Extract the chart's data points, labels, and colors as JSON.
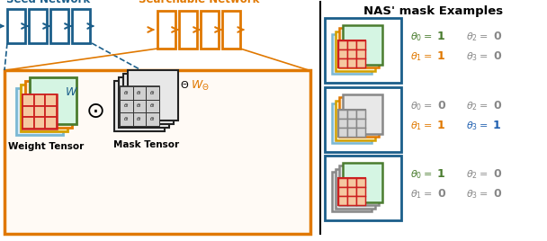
{
  "title": "NAS' mask Examples",
  "seed_network_label": "Seed Network",
  "seed_network_color": "#1B5E8A",
  "searchable_network_label": "Searchable Network",
  "searchable_network_color": "#E07800",
  "weight_tensor_label": "Weight Tensor",
  "mask_tensor_label": "Mask Tensor",
  "bg_color": "#ffffff",
  "orange_color": "#E07800",
  "teal_color": "#1B5E8A",
  "green_color": "#4A7C2F",
  "red_color": "#CC2020",
  "gray_color": "#888888",
  "blue_color": "#2060B0",
  "yellow_color": "#D4A000",
  "light_blue_color": "#7BB8D4",
  "example_rows": [
    {
      "theta_vals": [
        "1",
        "1",
        "0",
        "0"
      ],
      "theta_colors": [
        "#4A7C2F",
        "#E07800",
        "#888888",
        "#888888"
      ],
      "val_colors": [
        "#4A7C2F",
        "#E07800",
        "#888888",
        "#888888"
      ],
      "kernel_color": "#CC2020",
      "bg_kernel": "#F5C8A0",
      "layer_colors": [
        "#7BB8D4",
        "#D4A000",
        "#E07800",
        "#4A7C2F"
      ],
      "layer_fcs": [
        "#D6EAF8",
        "#FEF5D0",
        "#FDEBD0",
        "#D5F5E3"
      ]
    },
    {
      "theta_vals": [
        "0",
        "1",
        "0",
        "1"
      ],
      "theta_colors": [
        "#888888",
        "#E07800",
        "#888888",
        "#2060B0"
      ],
      "val_colors": [
        "#888888",
        "#E07800",
        "#888888",
        "#2060B0"
      ],
      "kernel_color": "#888888",
      "bg_kernel": "#D8D8D8",
      "layer_colors": [
        "#7BB8D4",
        "#D4A000",
        "#E07800",
        "#888888"
      ],
      "layer_fcs": [
        "#D6EAF8",
        "#FEF5D0",
        "#FDEBD0",
        "#E8E8E8"
      ]
    },
    {
      "theta_vals": [
        "1",
        "0",
        "0",
        "0"
      ],
      "theta_colors": [
        "#4A7C2F",
        "#888888",
        "#888888",
        "#888888"
      ],
      "val_colors": [
        "#4A7C2F",
        "#888888",
        "#888888",
        "#888888"
      ],
      "kernel_color": "#CC2020",
      "bg_kernel": "#F5C8A0",
      "layer_colors": [
        "#888888",
        "#888888",
        "#888888",
        "#4A7C2F"
      ],
      "layer_fcs": [
        "#E8E8E8",
        "#E8E8E8",
        "#E8E8E8",
        "#D5F5E3"
      ]
    }
  ]
}
